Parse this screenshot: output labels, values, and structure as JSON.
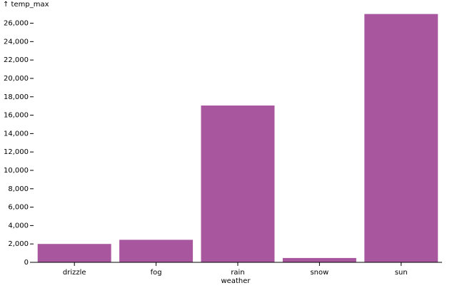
{
  "chart_data": {
    "type": "bar",
    "y_label": "↑ temp_max",
    "x_label": "weather",
    "categories": [
      "drizzle",
      "fog",
      "rain",
      "snow",
      "sun"
    ],
    "values": [
      2000,
      2450,
      17050,
      470,
      27000
    ],
    "color": "#a8579f",
    "ylim": [
      0,
      27050
    ],
    "yticks": [
      0,
      {
        "value": 2000,
        "label": "2,000"
      },
      {
        "value": 4000,
        "label": "4,000"
      },
      {
        "value": 6000,
        "label": "6,000"
      },
      {
        "value": 8000,
        "label": "8,000"
      },
      {
        "value": 10000,
        "label": "10,000"
      },
      {
        "value": 12000,
        "label": "12,000"
      },
      {
        "value": 14000,
        "label": "14,000"
      },
      {
        "value": 16000,
        "label": "16,000"
      },
      {
        "value": 18000,
        "label": "18,000"
      },
      {
        "value": 20000,
        "label": "20,000"
      },
      {
        "value": 22000,
        "label": "22,000"
      },
      {
        "value": 24000,
        "label": "24,000"
      },
      {
        "value": 26000,
        "label": "26,000"
      }
    ]
  }
}
